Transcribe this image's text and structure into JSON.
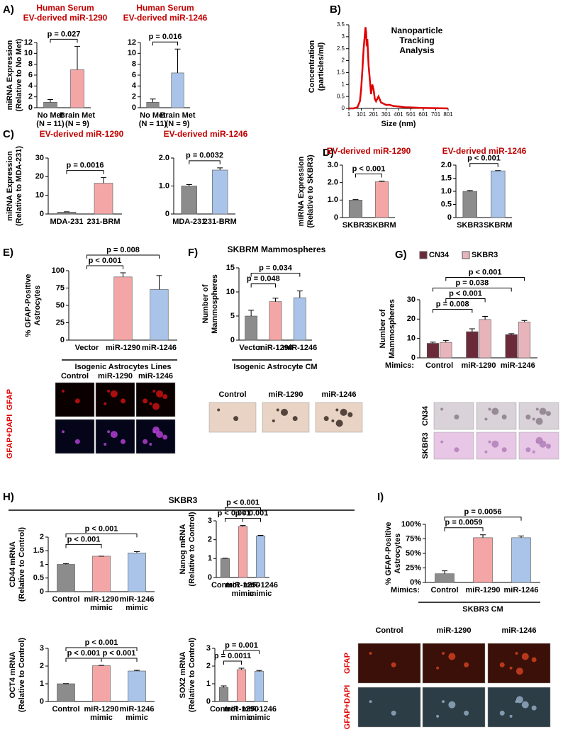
{
  "panel_labels": [
    "A)",
    "B)",
    "C)",
    "D)",
    "E)",
    "F)",
    "G)",
    "H)",
    "I)"
  ],
  "section_header": "SKBR3",
  "chart_data": [
    {
      "type": "bar",
      "title": [
        "Human Serum",
        "EV-derived miR-1290"
      ],
      "title_color": "#c00000",
      "y_label": [
        "miRNA Expression",
        "(Relative to No Met)"
      ],
      "categories": [
        [
          "No Met",
          "(N = 11)"
        ],
        [
          "Brain Met",
          "(N = 9)"
        ]
      ],
      "values": [
        1,
        7
      ],
      "errors": [
        0.5,
        4.3
      ],
      "colors": [
        "#8c8c8c",
        "#f4a6a6"
      ],
      "ylim": [
        0,
        12
      ],
      "yticks": [
        0,
        2,
        4,
        6,
        8,
        10,
        12
      ],
      "comparisons": [
        {
          "from": 0,
          "to": 1,
          "label": "p = 0.027"
        }
      ]
    },
    {
      "type": "bar",
      "title": [
        "Human Serum",
        "EV-derived miR-1246"
      ],
      "title_color": "#c00000",
      "categories": [
        [
          "No Met",
          "(N = 11)"
        ],
        [
          "Brain Met",
          "(N = 9)"
        ]
      ],
      "values": [
        1,
        6.4
      ],
      "errors": [
        0.6,
        4.4
      ],
      "colors": [
        "#8c8c8c",
        "#a9c4e8"
      ],
      "ylim": [
        0,
        12
      ],
      "yticks": [
        0,
        2,
        4,
        6,
        8,
        10,
        12
      ],
      "comparisons": [
        {
          "from": 0,
          "to": 1,
          "label": "p = 0.016"
        }
      ]
    },
    {
      "type": "line",
      "title": [
        "Nanoparticle",
        "Tracking",
        "Analysis"
      ],
      "y_label": [
        "Concentration",
        "(particles/ml)"
      ],
      "x_label": "Size (nm)",
      "color": "#e00000",
      "x": [
        1,
        40,
        70,
        90,
        100,
        110,
        120,
        130,
        135,
        140,
        145,
        150,
        160,
        170,
        180,
        190,
        200,
        210,
        220,
        240,
        260,
        280,
        300,
        330,
        360,
        400,
        450,
        500,
        550,
        600,
        700,
        801
      ],
      "values": [
        0,
        0,
        0.05,
        0.3,
        0.8,
        1.6,
        2.5,
        3.1,
        3.4,
        3.2,
        2.6,
        2.9,
        1.8,
        1.2,
        0.6,
        1.0,
        0.8,
        0.4,
        0.3,
        0.5,
        0.25,
        0.2,
        0.15,
        0.15,
        0.1,
        0.08,
        0.05,
        0.04,
        0.03,
        0.02,
        0.01,
        0
      ],
      "xlim": [
        1,
        801
      ],
      "xticks": [
        1,
        101,
        201,
        301,
        401,
        501,
        601,
        701,
        801
      ],
      "ylim": [
        0,
        3.5
      ],
      "yticks": [
        0,
        0.5,
        1,
        1.5,
        2,
        2.5,
        3,
        3.5
      ]
    },
    {
      "type": "bar",
      "title": "EV-derived miR-1290",
      "title_color": "#c00000",
      "y_label": [
        "miRNA Expression",
        "(Relative to MDA-231)"
      ],
      "categories": [
        "MDA-231",
        "231-BRM"
      ],
      "values": [
        1,
        16.5
      ],
      "errors": [
        0.2,
        3
      ],
      "colors": [
        "#8c8c8c",
        "#f4a6a6"
      ],
      "ylim": [
        0,
        30
      ],
      "yticks": [
        0,
        10,
        20,
        30
      ],
      "comparisons": [
        {
          "from": 0,
          "to": 1,
          "label": "p = 0.0016"
        }
      ]
    },
    {
      "type": "bar",
      "title": "EV-derived miR-1246",
      "title_color": "#c00000",
      "categories": [
        "MDA-231",
        "231-BRM"
      ],
      "values": [
        1,
        1.57
      ],
      "errors": [
        0.05,
        0.08
      ],
      "colors": [
        "#8c8c8c",
        "#a9c4e8"
      ],
      "ylim": [
        0,
        2
      ],
      "yticks": [
        0,
        {
          "value": 1,
          "label": "1.0"
        },
        {
          "value": 2,
          "label": "2.0"
        }
      ],
      "comparisons": [
        {
          "from": 0,
          "to": 1,
          "label": "p = 0.0032"
        }
      ]
    },
    {
      "type": "bar",
      "title": "EV-derived miR-1290",
      "title_color": "#c00000",
      "y_label": [
        "miRNA Expression",
        "(Relative to SKBR3)"
      ],
      "categories": [
        "SKBR3",
        "SKBRM"
      ],
      "values": [
        1,
        2.05
      ],
      "errors": [
        0.03,
        0.04
      ],
      "colors": [
        "#8c8c8c",
        "#f4a6a6"
      ],
      "ylim": [
        0,
        3
      ],
      "yticks": [
        0,
        {
          "value": 1,
          "label": "1.0"
        },
        {
          "value": 2,
          "label": "2.0"
        },
        {
          "value": 3,
          "label": "3.0"
        }
      ],
      "comparisons": [
        {
          "from": 0,
          "to": 1,
          "label": "p < 0.001"
        }
      ]
    },
    {
      "type": "bar",
      "title": "EV-derived miR-1246",
      "title_color": "#c00000",
      "categories": [
        "SKBR3",
        "SKBRM"
      ],
      "values": [
        1,
        1.78
      ],
      "errors": [
        0.03,
        0.01
      ],
      "colors": [
        "#8c8c8c",
        "#a9c4e8"
      ],
      "ylim": [
        0,
        2
      ],
      "yticks": [
        0,
        0.5,
        {
          "value": 1,
          "label": "1.0"
        },
        1.5,
        {
          "value": 2,
          "label": "2.0"
        }
      ],
      "comparisons": [
        {
          "from": 0,
          "to": 1,
          "label": "p < 0.001"
        }
      ]
    },
    {
      "type": "bar",
      "y_label": [
        "% GFAP-Positive",
        "Astrocytes"
      ],
      "categories": [
        "Vector",
        "miR-1290",
        "miR-1246"
      ],
      "values": [
        0,
        91,
        73
      ],
      "errors": [
        0,
        6,
        20
      ],
      "colors": [
        "#8c8c8c",
        "#f4a6a6",
        "#a9c4e8"
      ],
      "ylim": [
        0,
        100
      ],
      "yticks": [
        0,
        25,
        50,
        75,
        100
      ],
      "x_label": "Isogenic Astrocytes Lines",
      "comparisons": [
        {
          "from": 0,
          "to": 1,
          "label": "p < 0.001"
        },
        {
          "from": 0,
          "to": 2,
          "label": "p = 0.008"
        }
      ]
    },
    {
      "type": "bar",
      "title": "SKBRM Mammospheres",
      "title_color": "#000000",
      "y_label": [
        "Number of",
        "Mammospheres"
      ],
      "categories": [
        "Vector",
        "miR-1290",
        "miR-1246"
      ],
      "values": [
        5,
        8,
        8.8
      ],
      "errors": [
        1.2,
        0.7,
        1.4
      ],
      "colors": [
        "#8c8c8c",
        "#f4a6a6",
        "#a9c4e8"
      ],
      "ylim": [
        0,
        15
      ],
      "yticks": [
        0,
        5,
        10,
        15
      ],
      "x_label": "Isogenic Astrocyte CM",
      "comparisons": [
        {
          "from": 0,
          "to": 1,
          "label": "p = 0.048"
        },
        {
          "from": 0,
          "to": 2,
          "label": "p = 0.034"
        }
      ]
    },
    {
      "type": "bar",
      "y_label": [
        "Number of",
        "Mammospheres"
      ],
      "mimics_label": "Mimics:",
      "categories": [
        "Control",
        "miR-1290",
        "miR-1246"
      ],
      "series": [
        {
          "name": "CN34",
          "color": "#6b2a3a",
          "values": [
            7.5,
            13.5,
            12
          ],
          "errors": [
            0.6,
            1.5,
            0.5
          ]
        },
        {
          "name": "SKBR3",
          "color": "#e8b4bc",
          "values": [
            8,
            19.8,
            18.5
          ],
          "errors": [
            1,
            1.6,
            0.8
          ]
        }
      ],
      "ylim": [
        0,
        30
      ],
      "yticks": [
        0,
        10,
        20,
        30
      ],
      "comparisons": [
        {
          "from": [
            0,
            0
          ],
          "to": [
            0,
            1
          ],
          "label": "p = 0.008"
        },
        {
          "from": [
            1,
            0
          ],
          "to": [
            1,
            1
          ],
          "label": "p < 0.001"
        },
        {
          "from": [
            0,
            0
          ],
          "to": [
            0,
            2
          ],
          "label": "p = 0.038"
        },
        {
          "from": [
            1,
            0
          ],
          "to": [
            1,
            2
          ],
          "label": "p < 0.001"
        }
      ]
    },
    {
      "type": "bar",
      "y_label": [
        "CD44 mRNA",
        "(Relative to Control)"
      ],
      "categories": [
        [
          "Control"
        ],
        [
          "miR-1290",
          "mimic"
        ],
        [
          "miR-1246",
          "mimic"
        ]
      ],
      "values": [
        1,
        1.3,
        1.42
      ],
      "errors": [
        0.03,
        0,
        0.05
      ],
      "colors": [
        "#8c8c8c",
        "#f4a6a6",
        "#a9c4e8"
      ],
      "ylim": [
        0,
        2
      ],
      "yticks": [
        0,
        0.5,
        1,
        1.5,
        2
      ],
      "comparisons": [
        {
          "from": 0,
          "to": 1,
          "label": "p < 0.001"
        },
        {
          "from": 0,
          "to": 2,
          "label": "p < 0.001"
        }
      ]
    },
    {
      "type": "bar",
      "y_label": [
        "Nanog mRNA",
        "(Relative to Control)"
      ],
      "categories": [
        [
          "Control"
        ],
        [
          "miR-1290",
          "mimic"
        ],
        [
          "miR-1246",
          "mimic"
        ]
      ],
      "values": [
        1,
        2.7,
        2.2
      ],
      "errors": [
        0.02,
        0.05,
        0.03
      ],
      "colors": [
        "#8c8c8c",
        "#f4a6a6",
        "#a9c4e8"
      ],
      "ylim": [
        0,
        3
      ],
      "yticks": [
        0,
        1,
        2,
        3
      ],
      "comparisons": [
        {
          "from": 0,
          "to": 1,
          "label": "p < 0.001"
        },
        {
          "from": 1,
          "to": 2,
          "label": "p < 0.001"
        },
        {
          "from": 0,
          "to": 2,
          "label": "p < 0.001"
        }
      ]
    },
    {
      "type": "bar",
      "y_label": [
        "OCT4 mRNA",
        "(Relative to Control)"
      ],
      "categories": [
        [
          "Control"
        ],
        [
          "miR-1290",
          "mimic"
        ],
        [
          "miR-1246",
          "mimic"
        ]
      ],
      "values": [
        1,
        2.02,
        1.72
      ],
      "errors": [
        0.01,
        0.02,
        0.04
      ],
      "colors": [
        "#8c8c8c",
        "#f4a6a6",
        "#a9c4e8"
      ],
      "ylim": [
        0,
        3
      ],
      "yticks": [
        0,
        1,
        2,
        3
      ],
      "comparisons": [
        {
          "from": 0,
          "to": 1,
          "label": "p < 0.001"
        },
        {
          "from": 1,
          "to": 2,
          "label": "p < 0.001"
        },
        {
          "from": 0,
          "to": 2,
          "label": "p < 0.001"
        }
      ]
    },
    {
      "type": "bar",
      "y_label": [
        "SOX2 mRNA",
        "(Relative to Control)"
      ],
      "categories": [
        [
          "Control"
        ],
        [
          "miR-1290",
          "mimic"
        ],
        [
          "miR-1246",
          "mimic"
        ]
      ],
      "values": [
        0.8,
        1.8,
        1.7
      ],
      "errors": [
        0.08,
        0.08,
        0.05
      ],
      "colors": [
        "#8c8c8c",
        "#f4a6a6",
        "#a9c4e8"
      ],
      "ylim": [
        0,
        3
      ],
      "yticks": [
        0,
        1,
        2,
        3
      ],
      "comparisons": [
        {
          "from": 0,
          "to": 1,
          "label": "p = 0.0011"
        },
        {
          "from": 0,
          "to": 2,
          "label": "p = 0.001"
        }
      ]
    },
    {
      "type": "bar",
      "y_label": [
        "% GFAP-Positive",
        "Astrocytes"
      ],
      "mimics_label": "Mimics:",
      "categories": [
        "Control",
        "miR-1290",
        "miR-1246"
      ],
      "values": [
        15,
        77,
        77
      ],
      "errors": [
        5,
        5,
        3
      ],
      "colors": [
        "#8c8c8c",
        "#f4a6a6",
        "#a9c4e8"
      ],
      "ylim": [
        0,
        100
      ],
      "yticks": [
        {
          "value": 0,
          "label": "0%"
        },
        {
          "value": 25,
          "label": "25%"
        },
        {
          "value": 50,
          "label": "50%"
        },
        {
          "value": 75,
          "label": "75%"
        },
        {
          "value": 100,
          "label": "100%"
        }
      ],
      "x_label": "SKBR3 CM",
      "comparisons": [
        {
          "from": 0,
          "to": 1,
          "label": "p = 0.0059"
        },
        {
          "from": 0,
          "to": 2,
          "label": "p = 0.0056"
        }
      ]
    }
  ],
  "micrographs": [
    {
      "columns": [
        "Control",
        "miR-1290",
        "miR-1246"
      ],
      "rows": [
        "GFAP",
        "GFAP+DAPI"
      ],
      "label_color": "#e00000"
    },
    {
      "columns": [
        "Control",
        "miR-1290",
        "miR-1246"
      ]
    },
    {
      "rows": [
        "CN34",
        "SKBR3"
      ],
      "label_color": "#000000"
    },
    {
      "columns": [
        "Control",
        "miR-1290",
        "miR-1246"
      ],
      "rows": [
        "GFAP",
        "GFAP+DAPI"
      ],
      "label_color": "#e00000"
    }
  ]
}
